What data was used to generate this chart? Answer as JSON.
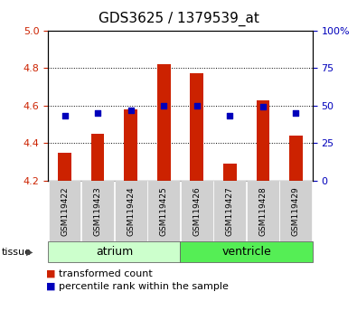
{
  "title": "GDS3625 / 1379539_at",
  "samples": [
    "GSM119422",
    "GSM119423",
    "GSM119424",
    "GSM119425",
    "GSM119426",
    "GSM119427",
    "GSM119428",
    "GSM119429"
  ],
  "transformed_counts": [
    4.35,
    4.45,
    4.58,
    4.82,
    4.77,
    4.29,
    4.63,
    4.44
  ],
  "bar_base": 4.2,
  "percentile_ranks": [
    43,
    45,
    47,
    50,
    50,
    43,
    49,
    45
  ],
  "ylim_left": [
    4.2,
    5.0
  ],
  "ylim_right": [
    0,
    100
  ],
  "yticks_left": [
    4.2,
    4.4,
    4.6,
    4.8,
    5.0
  ],
  "yticks_right": [
    0,
    25,
    50,
    75,
    100
  ],
  "ytick_labels_right": [
    "0",
    "25",
    "50",
    "75",
    "100%"
  ],
  "bar_color": "#cc2200",
  "dot_color": "#0000bb",
  "grid_color": "#000000",
  "tissue_groups": [
    {
      "label": "atrium",
      "start": 0,
      "end": 4,
      "color": "#ccffcc"
    },
    {
      "label": "ventricle",
      "start": 4,
      "end": 8,
      "color": "#55ee55"
    }
  ],
  "legend_bar_label": "transformed count",
  "legend_dot_label": "percentile rank within the sample",
  "xlabel_tissue": "tissue",
  "bg_color": "#ffffff",
  "plot_bg_color": "#ffffff",
  "tick_label_color_left": "#cc2200",
  "tick_label_color_right": "#0000bb",
  "title_fontsize": 11,
  "axis_fontsize": 8,
  "sample_label_fontsize": 6.5,
  "legend_fontsize": 8,
  "tissue_label_fontsize": 9
}
